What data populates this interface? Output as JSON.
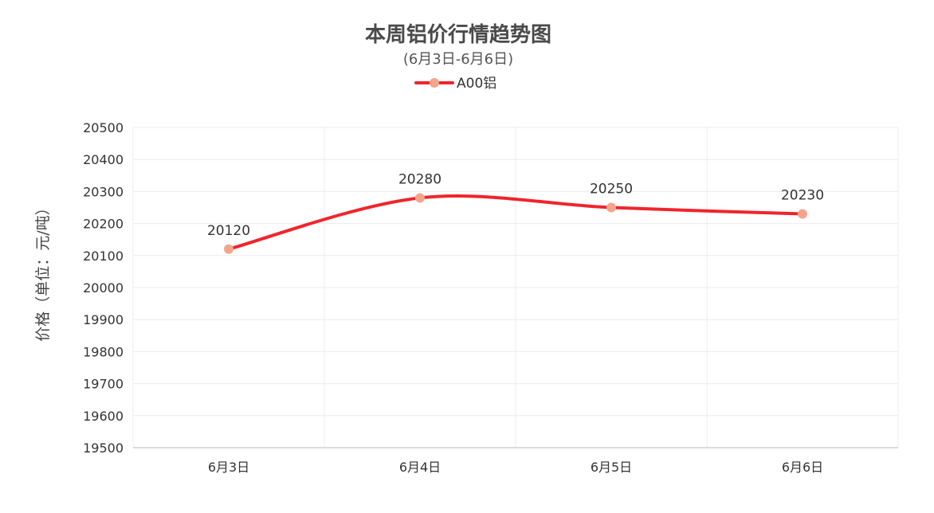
{
  "chart_data": {
    "type": "line",
    "title": "本周铝价行情趋势图",
    "subtitle": "(6月3日-6月6日)",
    "ylabel": "价格（单位：元/吨）",
    "xlabel": "",
    "categories": [
      "6月3日",
      "6月4日",
      "6月5日",
      "6月6日"
    ],
    "series": [
      {
        "name": "A00铝",
        "values": [
          20120,
          20280,
          20250,
          20230
        ],
        "line_color": "#f0252b",
        "marker_color": "#f4a58c"
      }
    ],
    "ylim": [
      19500,
      20500
    ],
    "yticks": [
      20500,
      20400,
      20300,
      20200,
      20100,
      20000,
      19900,
      19800,
      19700,
      19600,
      19500
    ],
    "grid": true,
    "smooth": true,
    "legend_position": "top-center",
    "data_labels": true
  }
}
